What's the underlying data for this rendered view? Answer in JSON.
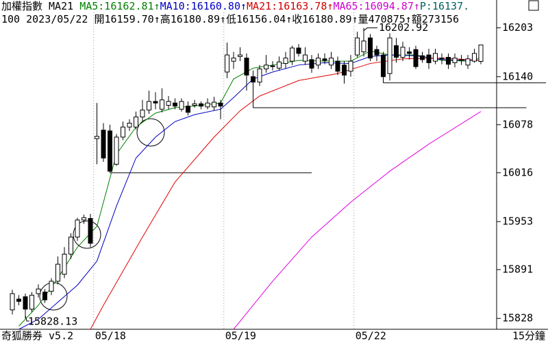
{
  "chart_data": {
    "type": "candlestick",
    "title_lines": [
      [
        {
          "text": "加權指數 MA21 ",
          "color": "#000000"
        },
        {
          "text": "MA5:16162.81↑",
          "color": "#008000"
        },
        {
          "text": "MA10:16160.80↑",
          "color": "#0000c0"
        },
        {
          "text": "MA21:16163.78↑",
          "color": "#d00000"
        },
        {
          "text": "MA65:16094.87↑",
          "color": "#d000d0"
        },
        {
          "text": "P:16137.",
          "color": "#006060"
        }
      ],
      [
        {
          "text": "100 2023/05/22 開16159.70↑高16180.89↑低16156.04↑收16180.89↑量470875↑額273156",
          "color": "#000000"
        }
      ]
    ],
    "footer_left": "奇狐勝券 v5.2",
    "footer_right": "15分鐘",
    "categories": [
      null,
      null,
      null,
      null,
      null,
      null,
      null,
      null,
      null,
      null,
      null,
      null,
      null,
      "05/18",
      null,
      null,
      null,
      null,
      null,
      null,
      null,
      null,
      null,
      null,
      null,
      null,
      null,
      null,
      null,
      null,
      null,
      null,
      null,
      "05/19",
      null,
      null,
      null,
      null,
      null,
      null,
      null,
      null,
      null,
      null,
      null,
      null,
      null,
      null,
      null,
      null,
      null,
      null,
      null,
      "05/22",
      null,
      null,
      null,
      null,
      null,
      null,
      null,
      null,
      null,
      null,
      null,
      null,
      null,
      null,
      null,
      null,
      null,
      null,
      null
    ],
    "open": [
      15839,
      15853,
      15856,
      15840,
      15860,
      15862,
      15863,
      15876,
      15885,
      15911,
      15933,
      15955,
      15957,
      16060,
      16071,
      16070,
      16027,
      16062,
      16075,
      16075,
      16088,
      16097,
      16108,
      16098,
      16103,
      16106,
      16098,
      16102,
      16103,
      16105,
      16101,
      16101,
      16106,
      16146,
      16160,
      16166,
      16164,
      16140,
      16133,
      16150,
      16154,
      16151,
      16157,
      16160,
      16177,
      16160,
      16162,
      16155,
      16163,
      16155,
      16160,
      16155,
      16147,
      16168,
      16172,
      16190,
      16175,
      16168,
      16144,
      16180,
      16165,
      16172,
      16175,
      16167,
      16168,
      16160,
      16163,
      16165,
      16158,
      16161,
      16155,
      16160,
      16159.7
    ],
    "high": [
      15865,
      15858,
      15860,
      15862,
      15872,
      15866,
      15880,
      15908,
      15920,
      15938,
      15958,
      15962,
      15963,
      16106,
      16080,
      16078,
      16066,
      16082,
      16085,
      16095,
      16110,
      16122,
      16120,
      16125,
      16115,
      16112,
      16112,
      16108,
      16110,
      16108,
      16112,
      16114,
      16110,
      16184,
      16172,
      16178,
      16170,
      16148,
      16155,
      16168,
      16160,
      16166,
      16172,
      16180,
      16182,
      16178,
      16168,
      16170,
      16170,
      16172,
      16166,
      16160,
      16168,
      16198,
      16202.92,
      16195,
      16180,
      16172,
      16196,
      16190,
      16185,
      16178,
      16180,
      16172,
      16176,
      16176,
      16170,
      16170,
      16170,
      16168,
      16168,
      16176,
      16180.89
    ],
    "low": [
      15833,
      15845,
      15828.13,
      15836,
      15855,
      15848,
      15858,
      15872,
      15880,
      15905,
      15928,
      15950,
      15920,
      16027,
      16030,
      16016,
      16025,
      16058,
      16070,
      16072,
      16082,
      16092,
      16098,
      16094,
      16098,
      16098,
      16095,
      16090,
      16100,
      16098,
      16098,
      16096,
      16085,
      16138,
      16150,
      16160,
      16122,
      16100,
      16128,
      16145,
      16148,
      16148,
      16150,
      16155,
      16166,
      16155,
      16145,
      16150,
      16156,
      16150,
      16142,
      16131,
      16140,
      16165,
      16166,
      16160,
      16160,
      16132,
      16135,
      16158,
      16160,
      16162,
      16150,
      16158,
      16150,
      16156,
      16156,
      16150,
      16152,
      16155,
      16150,
      16158,
      16156.04
    ],
    "close": [
      15860,
      15850,
      15840,
      15858,
      15866,
      15852,
      15876,
      15898,
      15911,
      15933,
      15955,
      15958,
      15925,
      16063,
      16035,
      16018,
      16062,
      16075,
      16080,
      16088,
      16097,
      16108,
      16106,
      16110,
      16108,
      16102,
      16108,
      16094,
      16105,
      16102,
      16106,
      16107,
      16102,
      16168,
      16164,
      16168,
      16142,
      16133,
      16150,
      16155,
      16153,
      16159,
      16164,
      16177,
      16170,
      16168,
      16151,
      16164,
      16161,
      16164,
      16147,
      16142,
      16160,
      16190,
      16186,
      16164,
      16168,
      16140,
      16190,
      16165,
      16178,
      16170,
      16153,
      16162,
      16158,
      16170,
      16164,
      16156,
      16164,
      16162,
      16163,
      16170,
      16180.89
    ],
    "up_color": "#ffffff",
    "down_color": "#000000",
    "ma_lines": [
      {
        "color": "#008000",
        "x": [
          1,
          4,
          7,
          10,
          13,
          16,
          19,
          22,
          25,
          28,
          32,
          34,
          37,
          40,
          44,
          48,
          52,
          55,
          58,
          62,
          66,
          70,
          72
        ],
        "values": [
          15818,
          15845,
          15880,
          15920,
          15947,
          16040,
          16075,
          16093,
          16100,
          16102,
          16106,
          16137,
          16151,
          16155,
          16161,
          16160,
          16160,
          16173,
          16168,
          16168,
          16161,
          16160,
          16164
        ]
      },
      {
        "color": "#0000c0",
        "x": [
          1,
          4,
          7,
          10,
          13,
          16,
          19,
          22,
          25,
          28,
          32,
          34,
          37,
          40,
          44,
          48,
          52,
          55,
          58,
          62,
          66,
          70,
          72
        ],
        "values": [
          15814,
          15827,
          15849,
          15871,
          15902,
          15973,
          16035,
          16062,
          16082,
          16091,
          16098,
          16113,
          16137,
          16146,
          16155,
          16158,
          16157,
          16166,
          16168,
          16167,
          16162,
          16161,
          16161
        ]
      },
      {
        "color": "#e00000",
        "x": [
          12,
          14,
          20,
          25,
          31,
          35,
          38,
          44,
          50,
          55,
          60,
          66,
          72
        ],
        "values": [
          15814,
          15845,
          15933,
          16004,
          16062,
          16096,
          16115,
          16135,
          16144,
          16157,
          16163,
          16164,
          16161
        ]
      },
      {
        "color": "#e000e0",
        "x": [
          34,
          40,
          46,
          52,
          58,
          64,
          72
        ],
        "values": [
          15814,
          15876,
          15933,
          15978,
          16018,
          16053,
          16095
        ]
      }
    ],
    "support_lines": [
      {
        "value": 16016,
        "start": 15,
        "end": 46
      },
      {
        "value": 16100,
        "start": 37,
        "end": 79
      },
      {
        "value": 16132,
        "start": 57,
        "end": 82
      }
    ],
    "annotations": [
      {
        "label": "15828.13",
        "value": 15828.13,
        "index": 2
      },
      {
        "label": "16202.92",
        "value": 16202.92,
        "index": 54
      }
    ],
    "ylim": [
      15814,
      16223
    ],
    "yticks": [
      16203,
      16140,
      16078,
      16016,
      15953,
      15891,
      15828
    ]
  }
}
